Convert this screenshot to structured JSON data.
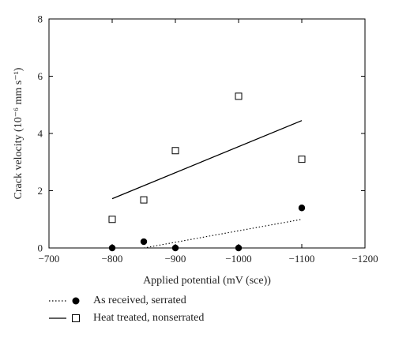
{
  "chart_data": {
    "type": "scatter",
    "xlabel": "Applied potential (mV (sce))",
    "ylabel": "Crack velocity (10⁻⁶ mm s⁻¹)",
    "xlim": [
      -700,
      -1200
    ],
    "ylim": [
      0,
      8
    ],
    "x_ticks": [
      -700,
      -800,
      -900,
      -1000,
      -1100,
      -1200
    ],
    "y_ticks": [
      0,
      2,
      4,
      6,
      8
    ],
    "x_tick_labels": [
      "−700",
      "−800",
      "−900",
      "−1000",
      "−1100",
      "−1200"
    ],
    "y_tick_labels": [
      "0",
      "2",
      "4",
      "6",
      "8"
    ],
    "grid": false,
    "legend_position": "bottom",
    "series": [
      {
        "name": "As received, serrated",
        "marker": "filled-circle",
        "line_style": "dotted",
        "color": "#000000",
        "points": [
          {
            "x": -800,
            "y": 0
          },
          {
            "x": -850,
            "y": 0.22
          },
          {
            "x": -900,
            "y": 0
          },
          {
            "x": -1000,
            "y": 0
          },
          {
            "x": -1100,
            "y": 1.4
          }
        ],
        "fit_line": [
          {
            "x": -850,
            "y": 0
          },
          {
            "x": -1100,
            "y": 1.0
          }
        ]
      },
      {
        "name": "Heat treated, nonserrated",
        "marker": "open-square",
        "line_style": "solid",
        "color": "#000000",
        "points": [
          {
            "x": -800,
            "y": 1.0
          },
          {
            "x": -850,
            "y": 1.68
          },
          {
            "x": -900,
            "y": 3.4
          },
          {
            "x": -1000,
            "y": 5.3
          },
          {
            "x": -1100,
            "y": 3.1
          }
        ],
        "fit_line": [
          {
            "x": -800,
            "y": 1.72
          },
          {
            "x": -1100,
            "y": 4.45
          }
        ]
      }
    ]
  }
}
